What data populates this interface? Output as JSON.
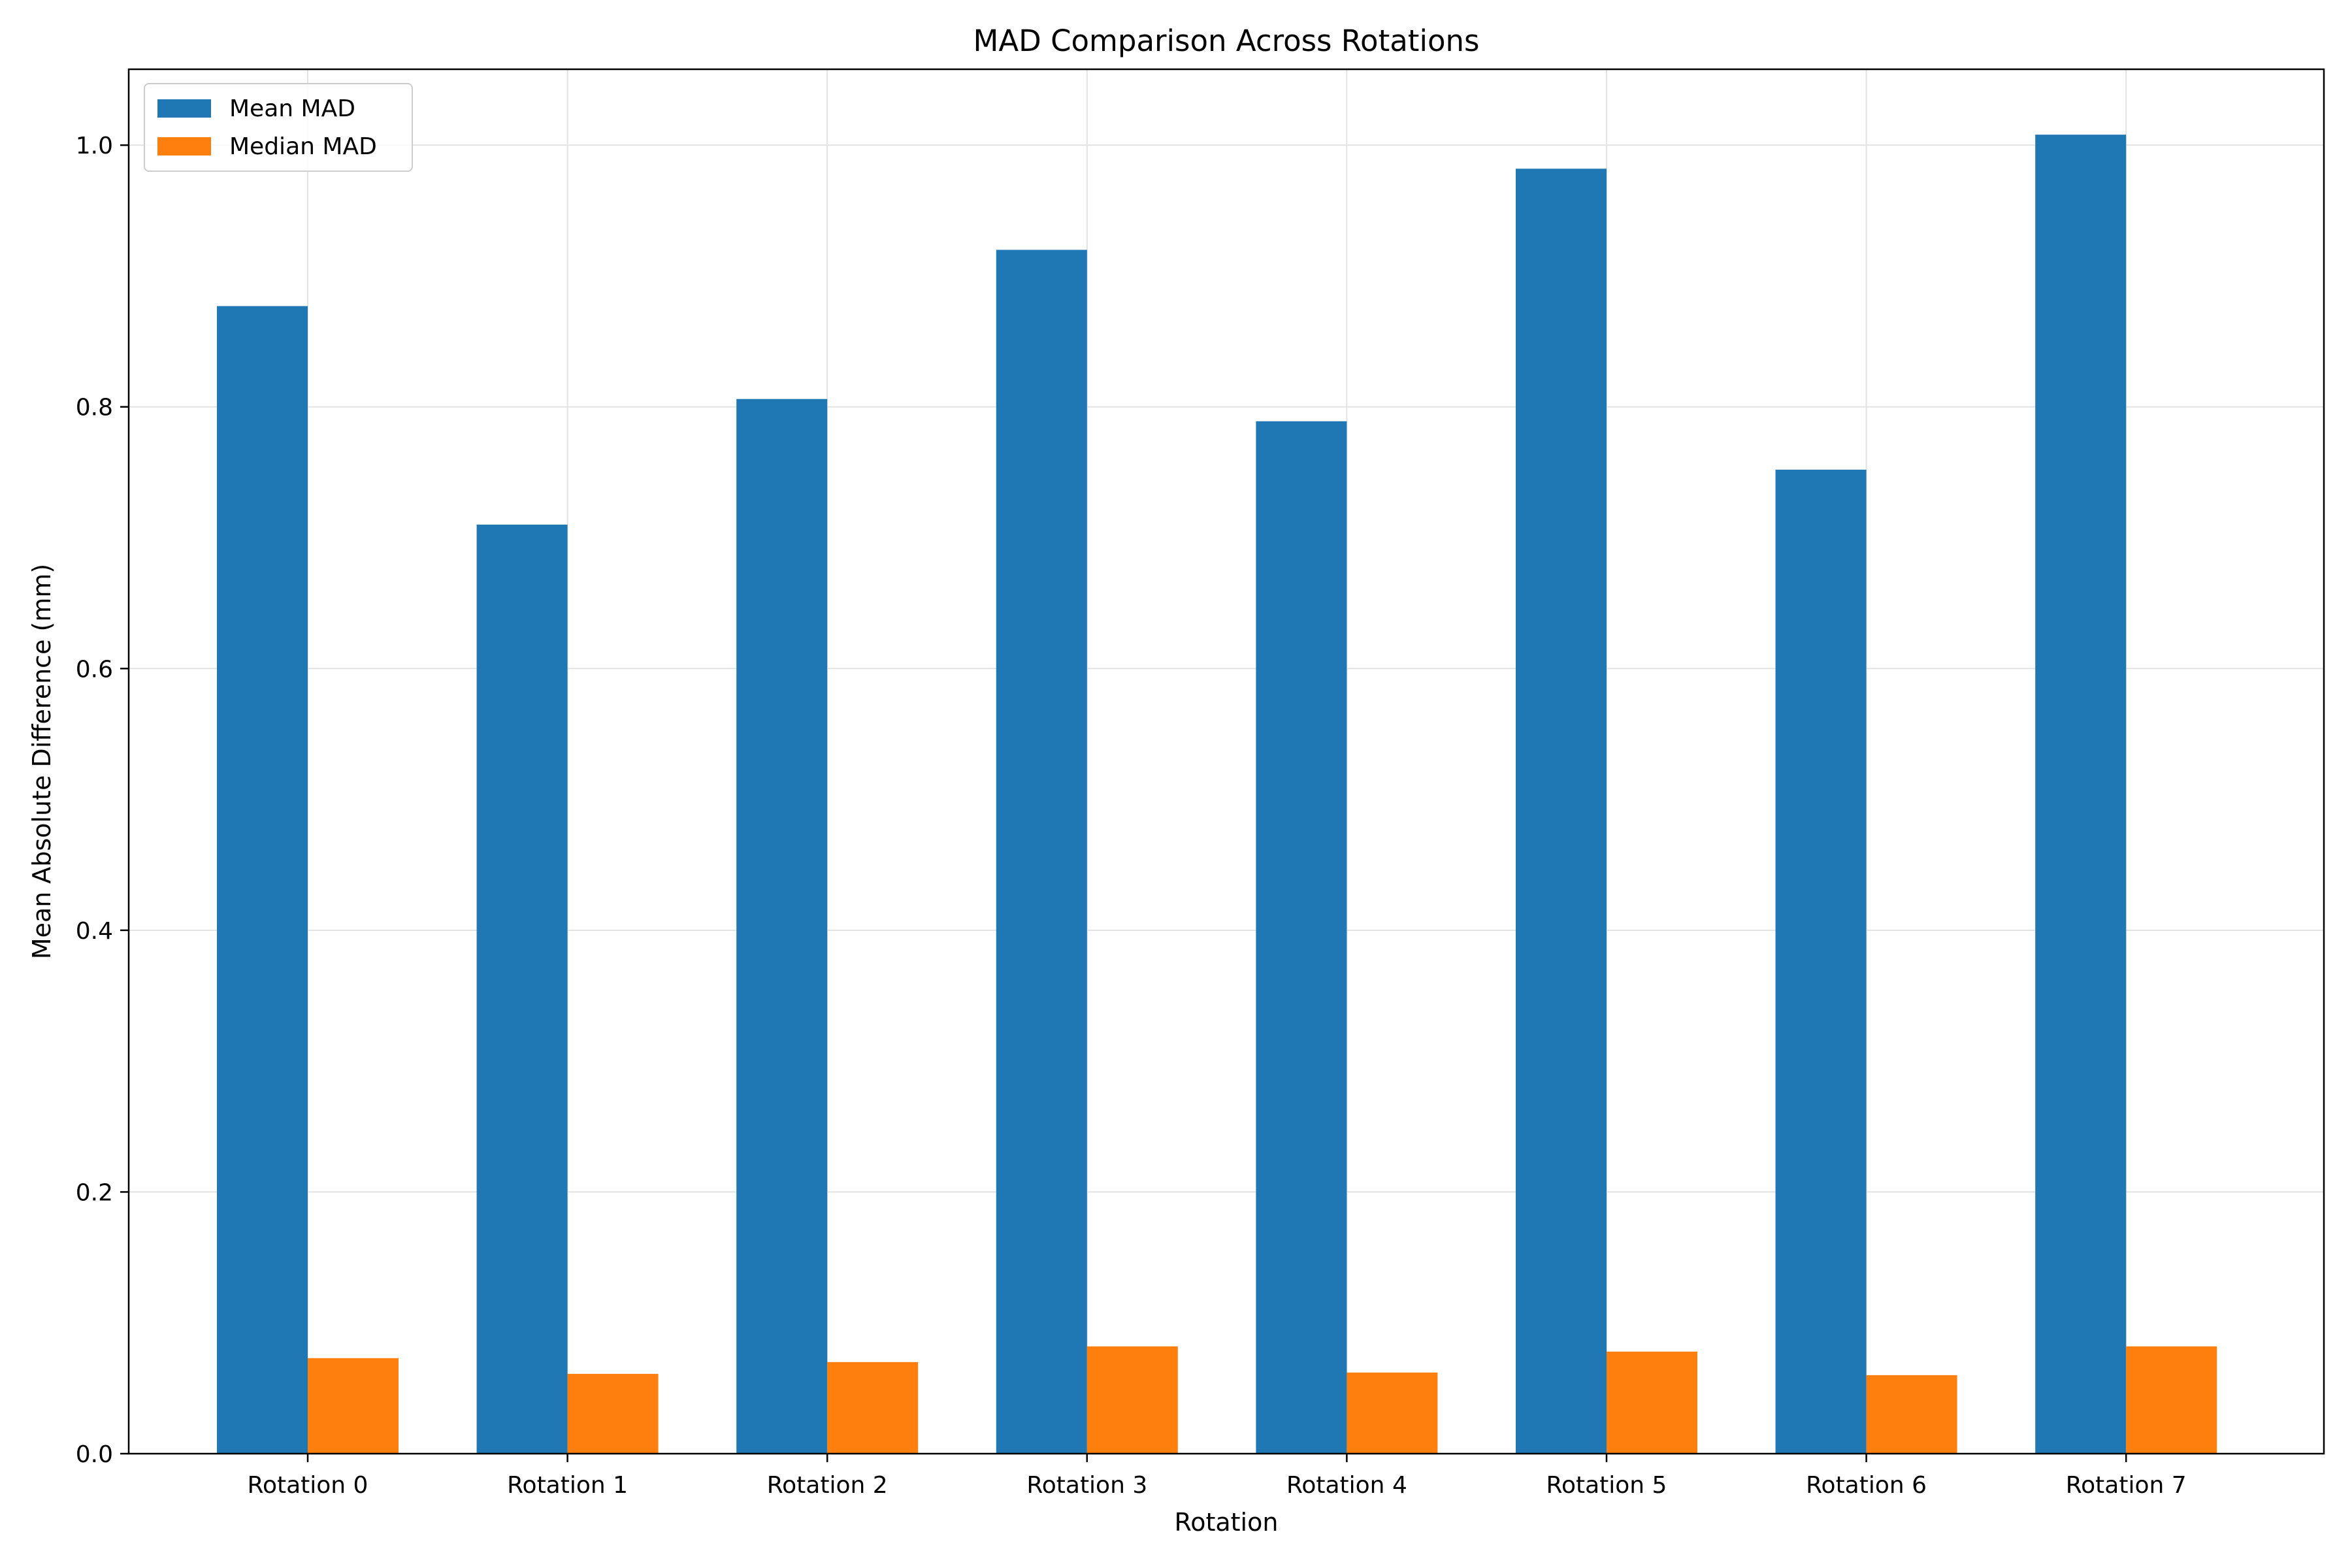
{
  "chart_data": {
    "type": "bar",
    "title": "MAD Comparison Across Rotations",
    "xlabel": "Rotation",
    "ylabel": "Mean Absolute Difference (mm)",
    "categories": [
      "Rotation 0",
      "Rotation 1",
      "Rotation 2",
      "Rotation 3",
      "Rotation 4",
      "Rotation 5",
      "Rotation 6",
      "Rotation 7"
    ],
    "series": [
      {
        "name": "Mean MAD",
        "color": "#1f77b4",
        "values": [
          0.877,
          0.71,
          0.806,
          0.92,
          0.789,
          0.982,
          0.752,
          1.008
        ]
      },
      {
        "name": "Median MAD",
        "color": "#ff7f0e",
        "values": [
          0.073,
          0.061,
          0.07,
          0.082,
          0.062,
          0.078,
          0.06,
          0.082
        ]
      }
    ],
    "ylim": [
      0,
      1.058
    ],
    "yticks": [
      0.0,
      0.2,
      0.4,
      0.6,
      0.8,
      1.0
    ],
    "ytick_labels": [
      "0.0",
      "0.2",
      "0.4",
      "0.6",
      "0.8",
      "1.0"
    ],
    "grid": true,
    "legend_position": "top-left"
  }
}
